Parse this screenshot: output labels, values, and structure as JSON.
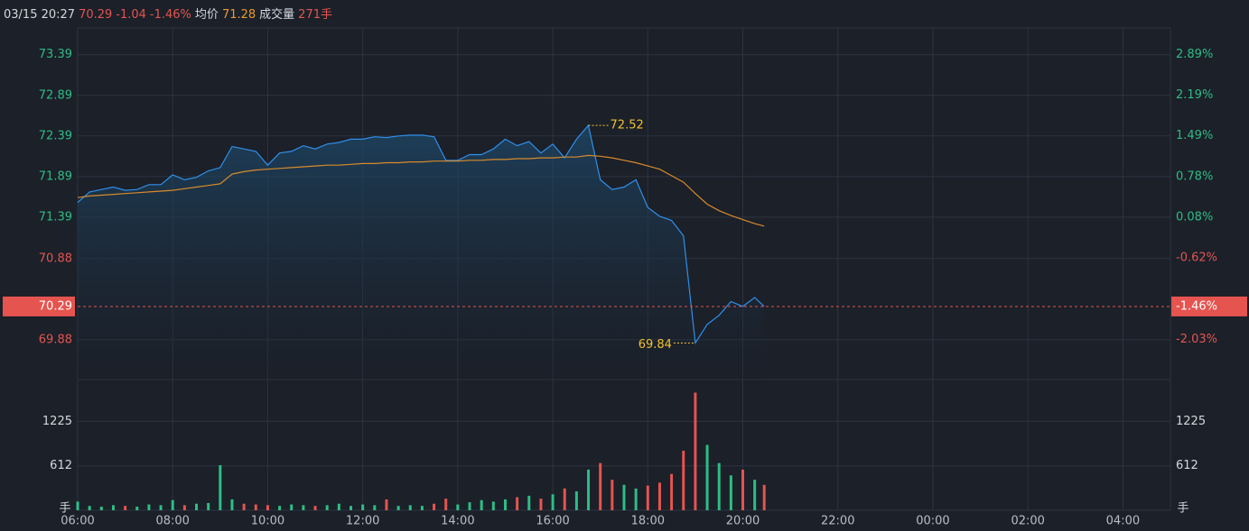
{
  "chart_data": {
    "type": "line",
    "header": {
      "time": "03/15 20:27",
      "change": "-1.04",
      "volume": "271手"
    },
    "x": [
      6,
      6.25,
      6.5,
      6.75,
      7,
      7.25,
      7.5,
      7.75,
      8,
      8.25,
      8.5,
      8.75,
      9,
      9.25,
      9.5,
      9.75,
      10,
      10.25,
      10.5,
      10.75,
      11,
      11.25,
      11.5,
      11.75,
      12,
      12.25,
      12.5,
      12.75,
      13,
      13.25,
      13.5,
      13.75,
      14,
      14.25,
      14.5,
      14.75,
      15,
      15.25,
      15.5,
      15.75,
      16,
      16.25,
      16.5,
      16.75,
      17,
      17.25,
      17.5,
      17.75,
      18,
      18.25,
      18.5,
      18.75,
      19,
      19.25,
      19.5,
      19.75,
      20,
      20.25,
      20.45
    ],
    "xlim": [
      6,
      29
    ],
    "xticks": [
      {
        "value": 6,
        "label": "06:00"
      },
      {
        "value": 8,
        "label": "08:00"
      },
      {
        "value": 10,
        "label": "10:00"
      },
      {
        "value": 12,
        "label": "12:00"
      },
      {
        "value": 14,
        "label": "14:00"
      },
      {
        "value": 16,
        "label": "16:00"
      },
      {
        "value": 18,
        "label": "18:00"
      },
      {
        "value": 20,
        "label": "20:00"
      },
      {
        "value": 22,
        "label": "22:00"
      },
      {
        "value": 24,
        "label": "00:00"
      },
      {
        "value": 26,
        "label": "02:00"
      },
      {
        "value": 28,
        "label": "04:00"
      }
    ],
    "series": [
      {
        "color": "#2f8fea",
        "values": [
          71.57,
          71.7,
          71.73,
          71.76,
          71.72,
          71.73,
          71.79,
          71.79,
          71.91,
          71.85,
          71.88,
          71.96,
          72.0,
          72.26,
          72.23,
          72.2,
          72.03,
          72.18,
          72.2,
          72.27,
          72.23,
          72.29,
          72.31,
          72.35,
          72.35,
          72.38,
          72.37,
          72.39,
          72.4,
          72.4,
          72.38,
          72.09,
          72.09,
          72.16,
          72.16,
          72.23,
          72.35,
          72.27,
          72.32,
          72.18,
          72.29,
          72.12,
          72.35,
          72.52,
          71.85,
          71.73,
          71.76,
          71.85,
          71.51,
          71.4,
          71.35,
          71.16,
          69.84,
          70.07,
          70.18,
          70.35,
          70.29,
          70.4,
          70.29
        ]
      },
      {
        "name": "均价",
        "color": "#d98a2b",
        "values": [
          71.63,
          71.65,
          71.66,
          71.67,
          71.68,
          71.69,
          71.7,
          71.71,
          71.72,
          71.74,
          71.76,
          71.78,
          71.8,
          71.92,
          71.95,
          71.97,
          71.98,
          71.99,
          72.0,
          72.01,
          72.02,
          72.03,
          72.03,
          72.04,
          72.05,
          72.05,
          72.06,
          72.06,
          72.07,
          72.07,
          72.08,
          72.08,
          72.08,
          72.09,
          72.09,
          72.1,
          72.1,
          72.11,
          72.11,
          72.12,
          72.12,
          72.13,
          72.13,
          72.15,
          72.14,
          72.12,
          72.09,
          72.06,
          72.02,
          71.98,
          71.9,
          71.82,
          71.68,
          71.55,
          71.47,
          71.41,
          71.36,
          71.31,
          71.28
        ]
      }
    ],
    "ylim": [
      69.39,
      73.72
    ],
    "yticks": [
      73.39,
      72.89,
      72.39,
      71.89,
      71.39,
      70.88,
      69.88
    ],
    "y2lim": [
      -2.72,
      3.35
    ],
    "y2ticks": [
      {
        "value": 2.89,
        "label": "2.89%"
      },
      {
        "value": 2.19,
        "label": "2.19%"
      },
      {
        "value": 1.49,
        "label": "1.49%"
      },
      {
        "value": 0.78,
        "label": "0.78%"
      },
      {
        "value": 0.08,
        "label": "0.08%"
      },
      {
        "value": -0.62,
        "label": "-0.62%"
      },
      {
        "value": -2.03,
        "label": "-2.03%"
      }
    ],
    "last": {
      "value": 70.29,
      "pct": {
        "value": -1.46,
        "label": "-1.46%"
      }
    },
    "high": {
      "x": 16.75,
      "value": 72.52
    },
    "low": {
      "x": 19,
      "value": 69.84
    },
    "up_color": "#2ebd85",
    "down_color": "#e5544f",
    "grid": true,
    "volume": {
      "label": "成交量",
      "unit": "手",
      "values": [
        120,
        60,
        50,
        70,
        60,
        50,
        80,
        70,
        140,
        70,
        90,
        100,
        620,
        150,
        90,
        80,
        70,
        60,
        80,
        70,
        60,
        70,
        90,
        60,
        80,
        70,
        150,
        60,
        70,
        60,
        90,
        160,
        80,
        110,
        140,
        120,
        150,
        180,
        200,
        160,
        220,
        300,
        260,
        560,
        650,
        420,
        350,
        300,
        340,
        380,
        500,
        820,
        1620,
        900,
        650,
        480,
        560,
        420,
        350
      ],
      "ylim": [
        0,
        1800
      ],
      "yticks": [
        1225,
        612
      ]
    }
  }
}
